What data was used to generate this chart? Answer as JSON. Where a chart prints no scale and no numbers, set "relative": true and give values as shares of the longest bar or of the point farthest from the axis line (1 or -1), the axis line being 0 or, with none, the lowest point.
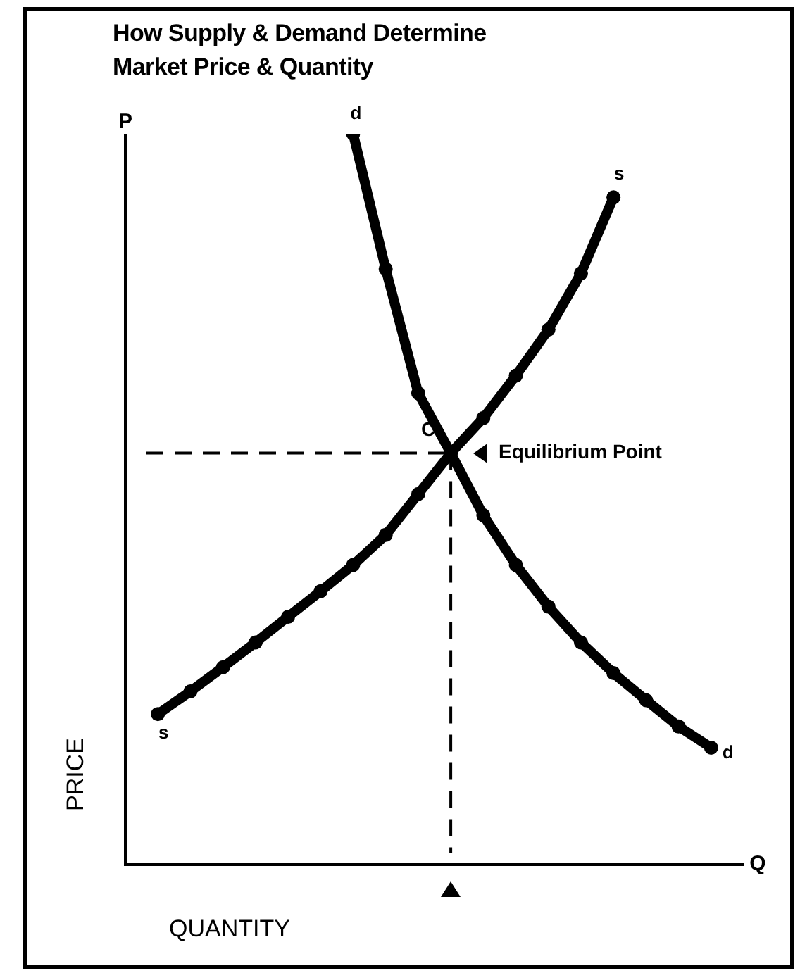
{
  "chart_data": {
    "type": "line",
    "title": "How Supply & Demand Determine Market Price & Quantity",
    "xlabel": "QUANTITY",
    "ylabel": "PRICE",
    "relative": true,
    "categories": [
      null,
      null,
      null,
      null,
      null,
      null,
      null,
      null,
      null,
      null,
      null,
      null,
      null,
      null,
      null,
      null,
      null,
      null,
      null,
      null
    ],
    "series": [
      {
        "name": "d",
        "color": "#000000",
        "values": [
          null,
          null,
          null,
          null,
          null,
          null,
          null,
          1.0,
          0.815,
          0.645,
          0.563,
          0.478,
          0.41,
          0.353,
          0.304,
          0.262,
          0.225,
          0.189,
          0.16,
          null
        ]
      },
      {
        "name": "s",
        "color": "#000000",
        "values": [
          null,
          0.206,
          0.237,
          0.27,
          0.304,
          0.339,
          0.374,
          0.41,
          0.451,
          0.507,
          0.563,
          0.611,
          0.669,
          0.732,
          0.809,
          0.913,
          null,
          null,
          null,
          null
        ]
      }
    ],
    "marker": "circle",
    "line_style": "solid",
    "legend": false,
    "ref_lines": [
      {
        "axis": "y",
        "value": 0.563,
        "line_style": "dashed"
      },
      {
        "axis": "x",
        "line_style": "dashed"
      }
    ],
    "annotations": [
      "P",
      "Q",
      "C",
      "Equilibrium Point"
    ]
  }
}
